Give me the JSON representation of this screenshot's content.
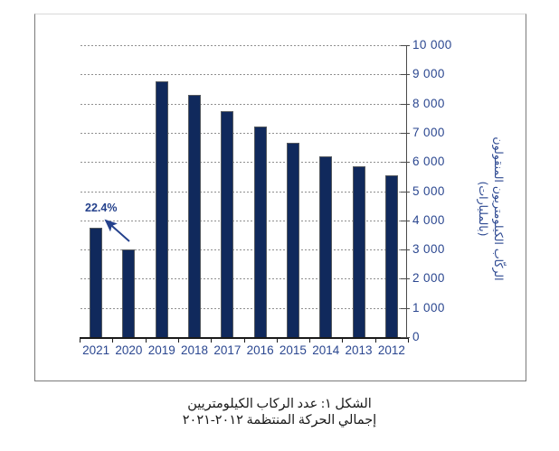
{
  "figure": {
    "caption_line1": "الشكل ١: عدد الركاب الكيلومتريين",
    "caption_line2": "إجمالي الحركة المنتظمة ٢٠١٢-٢٠٢١"
  },
  "y_axis": {
    "title_line1": "الركّاب الكيلومتريون المنقولون",
    "title_line2": "(بالمليارات)",
    "tick_labels": [
      "0",
      "1 000",
      "2 000",
      "3 000",
      "4 000",
      "5 000",
      "6 000",
      "7 000",
      "8 000",
      "9 000",
      "10 000"
    ]
  },
  "annotation": {
    "text": "22.4%",
    "target_category": "2020"
  },
  "colors": {
    "bar": "#10295C",
    "bar_border": "#54595F",
    "axis_label": "#2B4790",
    "annotation": "#24418C",
    "gridline": "#8F8F8F",
    "y_axis_line": "#4A4A4A",
    "x_axis_line": "#1A1A1A",
    "frame_border": "#7A7A7A",
    "frame_border_top": "#D8D8D8",
    "caption": "#1A1A1A",
    "background": "#FFFFFF"
  },
  "chart_data": {
    "type": "bar",
    "title": "الشكل ١: عدد الركاب الكيلومتريين — إجمالي الحركة المنتظمة ٢٠١٢-٢٠٢١",
    "categories": [
      "2021",
      "2020",
      "2019",
      "2018",
      "2017",
      "2016",
      "2015",
      "2014",
      "2013",
      "2012"
    ],
    "values": [
      3750,
      3000,
      8750,
      8300,
      7750,
      7200,
      6650,
      6200,
      5850,
      5550
    ],
    "xlabel": "",
    "ylabel": "الركّاب الكيلومتريون المنقولون (بالمليارات)",
    "ylim": [
      0,
      10000
    ],
    "ytick_interval": 1000,
    "grid": "horizontal-dotted",
    "legend": "none",
    "annotations": [
      {
        "text": "22.4%",
        "category": "2020",
        "arrow": "points-up-left-toward-label"
      }
    ]
  }
}
